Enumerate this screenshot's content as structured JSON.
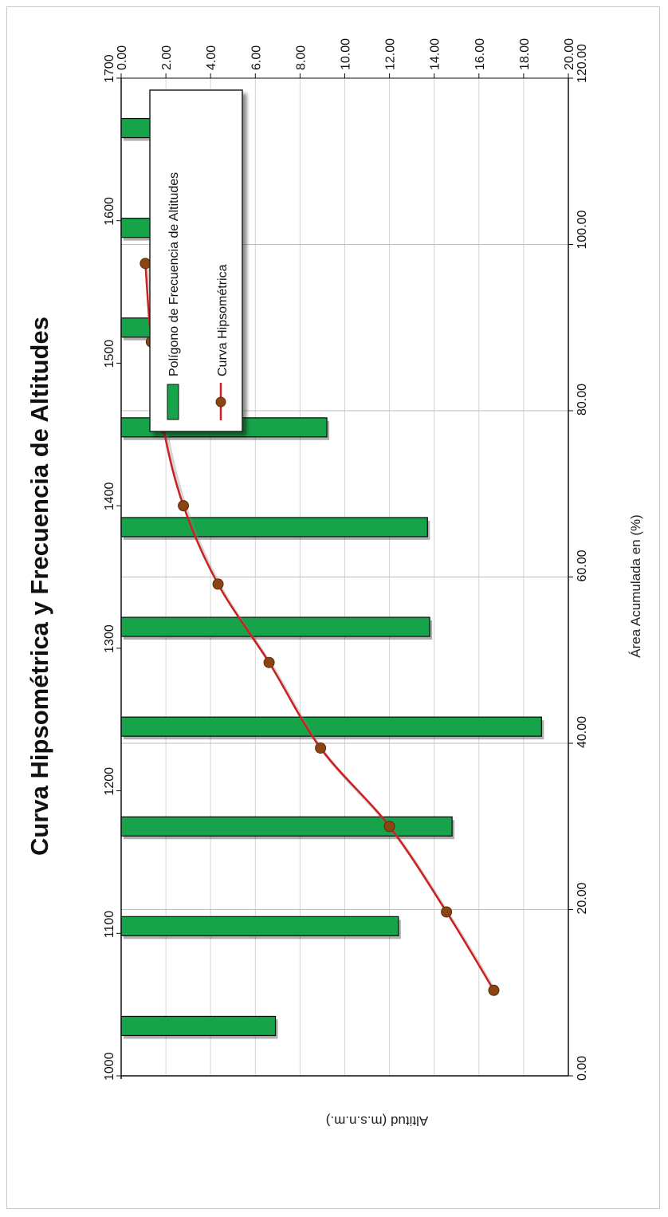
{
  "chart_data": {
    "type": "bar",
    "title": "Curva Hipsométrica y Frecuencia de Altitudes",
    "orientation": "rotated-90-clockwise",
    "x_axis": {
      "label": "Altitud (m.s.n.m.)",
      "range": [
        1000,
        1700
      ],
      "ticks": [
        "1700",
        "1600",
        "1500",
        "1400",
        "1300",
        "1200",
        "1100",
        "1000"
      ],
      "tick_values": [
        1700,
        1600,
        1500,
        1400,
        1300,
        1200,
        1100,
        1000
      ]
    },
    "y_axis_left": {
      "label": "",
      "range": [
        0,
        20
      ],
      "ticks": [
        "0.00",
        "2.00",
        "4.00",
        "6.00",
        "8.00",
        "10.00",
        "12.00",
        "14.00",
        "16.00",
        "18.00",
        "20.00"
      ],
      "tick_values": [
        0,
        2,
        4,
        6,
        8,
        10,
        12,
        14,
        16,
        18,
        20
      ]
    },
    "y_axis_right": {
      "label": "Área Acumulada en (%)",
      "range": [
        0,
        120
      ],
      "ticks": [
        "0.00",
        "20.00",
        "40.00",
        "60.00",
        "80.00",
        "100.00",
        "120.00"
      ],
      "tick_values": [
        0,
        20,
        40,
        60,
        80,
        100,
        120
      ]
    },
    "series": [
      {
        "name": "Polígono de Frecuencia de Altitudes",
        "kind": "bar",
        "color": "#17a34a",
        "x": [
          1665,
          1595,
          1525,
          1455,
          1385,
          1315,
          1245,
          1175,
          1105,
          1035
        ],
        "values": [
          1.5,
          3.1,
          5.1,
          9.2,
          13.7,
          13.8,
          18.8,
          14.8,
          12.4,
          6.9
        ]
      },
      {
        "name": "Curva Hipsométrica",
        "kind": "line",
        "color": "#cc1f1f",
        "marker_color": "#8b4513",
        "x": [
          1570,
          1515,
          1455,
          1400,
          1345,
          1290,
          1230,
          1175,
          1115,
          1060
        ],
        "values": [
          6.5,
          8.1,
          11.3,
          16.7,
          26.0,
          39.7,
          53.5,
          72.0,
          87.3,
          100.0
        ]
      }
    ],
    "legend_position": "top-right",
    "grid": true
  }
}
